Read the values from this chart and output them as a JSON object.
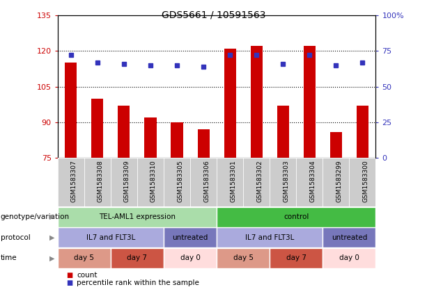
{
  "title": "GDS5661 / 10591563",
  "samples": [
    "GSM1583307",
    "GSM1583308",
    "GSM1583309",
    "GSM1583310",
    "GSM1583305",
    "GSM1583306",
    "GSM1583301",
    "GSM1583302",
    "GSM1583303",
    "GSM1583304",
    "GSM1583299",
    "GSM1583300"
  ],
  "bar_values": [
    115,
    100,
    97,
    92,
    90,
    87,
    121,
    122,
    97,
    122,
    86,
    97
  ],
  "dot_values": [
    72,
    67,
    66,
    65,
    65,
    64,
    72,
    72,
    66,
    72,
    65,
    67
  ],
  "ylim_left": [
    75,
    135
  ],
  "ylim_right": [
    0,
    100
  ],
  "yticks_left": [
    75,
    90,
    105,
    120,
    135
  ],
  "yticks_right": [
    0,
    25,
    50,
    75,
    100
  ],
  "ytick_right_labels": [
    "0",
    "25",
    "50",
    "75",
    "100%"
  ],
  "bar_color": "#cc0000",
  "dot_color": "#3333bb",
  "row_labels": [
    "genotype/variation",
    "protocol",
    "time"
  ],
  "genotype_groups": [
    {
      "label": "TEL-AML1 expression",
      "start": 0,
      "end": 6,
      "color": "#aaddaa"
    },
    {
      "label": "control",
      "start": 6,
      "end": 12,
      "color": "#44bb44"
    }
  ],
  "protocol_groups": [
    {
      "label": "IL7 and FLT3L",
      "start": 0,
      "end": 4,
      "color": "#aaaadd"
    },
    {
      "label": "untreated",
      "start": 4,
      "end": 6,
      "color": "#7777bb"
    },
    {
      "label": "IL7 and FLT3L",
      "start": 6,
      "end": 10,
      "color": "#aaaadd"
    },
    {
      "label": "untreated",
      "start": 10,
      "end": 12,
      "color": "#7777bb"
    }
  ],
  "time_groups": [
    {
      "label": "day 5",
      "start": 0,
      "end": 2,
      "color": "#dd9988"
    },
    {
      "label": "day 7",
      "start": 2,
      "end": 4,
      "color": "#cc5544"
    },
    {
      "label": "day 0",
      "start": 4,
      "end": 6,
      "color": "#ffdddd"
    },
    {
      "label": "day 5",
      "start": 6,
      "end": 8,
      "color": "#dd9988"
    },
    {
      "label": "day 7",
      "start": 8,
      "end": 10,
      "color": "#cc5544"
    },
    {
      "label": "day 0",
      "start": 10,
      "end": 12,
      "color": "#ffdddd"
    }
  ],
  "tick_color_left": "#cc0000",
  "tick_color_right": "#3333bb",
  "sample_bg_color": "#cccccc",
  "legend_count_color": "#cc0000",
  "legend_pct_color": "#3333bb"
}
